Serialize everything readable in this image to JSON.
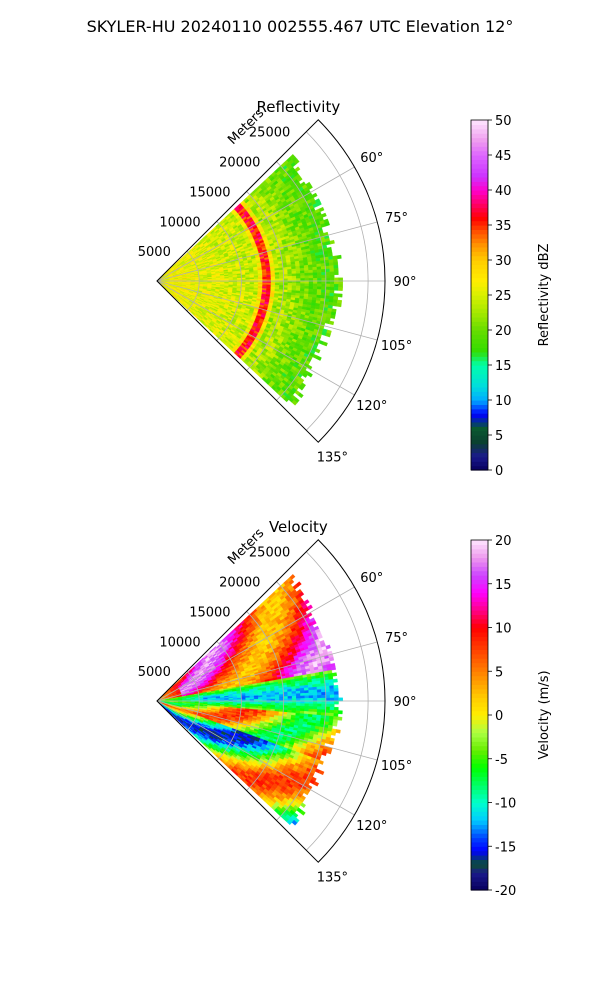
{
  "suptitle": "SKYLER-HU  20240110  002555.467 UTC Elevation 12°",
  "chart_data": [
    {
      "type": "heatmap",
      "title": "Reflectivity",
      "projection": "polar-sector",
      "theta_range_deg": [
        45,
        135
      ],
      "theta_ticks": [
        "60°",
        "75°",
        "90°",
        "105°",
        "120°",
        "135°"
      ],
      "radial_label": "Meters",
      "radial_ticks": [
        5000,
        10000,
        15000,
        20000,
        25000
      ],
      "r_max": 27000,
      "data_extent_m": 21000,
      "grid": true,
      "colorbar": {
        "label": "Reflectivity dBZ",
        "range": [
          0,
          50
        ],
        "ticks": [
          0,
          5,
          10,
          15,
          20,
          25,
          30,
          35,
          40,
          45,
          50
        ]
      },
      "description_values": "near-range reflectivity 20-30 dBZ, band of 35-40 dBZ at about 13000 m, falling to 15-20 dBZ beyond 17000 m"
    },
    {
      "type": "heatmap",
      "title": "Velocity",
      "projection": "polar-sector",
      "theta_range_deg": [
        45,
        135
      ],
      "theta_ticks": [
        "60°",
        "75°",
        "90°",
        "105°",
        "120°",
        "135°"
      ],
      "radial_label": "Meters",
      "radial_ticks": [
        5000,
        10000,
        15000,
        20000,
        25000
      ],
      "r_max": 27000,
      "data_extent_m": 21000,
      "grid": true,
      "colorbar": {
        "label": "Velocity (m/s)",
        "range": [
          -20,
          20
        ],
        "ticks": [
          -20,
          -15,
          -10,
          -5,
          0,
          5,
          10,
          15,
          20
        ]
      },
      "description_values": "positive velocities (10-20 m/s) in northern sector, negative (-10 to -15 m/s) near 90-100°, mixed 0-15 m/s in southern sector"
    }
  ]
}
